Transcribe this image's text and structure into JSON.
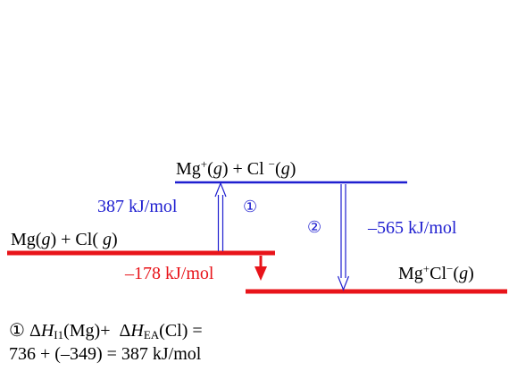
{
  "levels": {
    "ions_gas": {
      "species": [
        {
          "ion": "Mg",
          "charge": "+",
          "phase": "g"
        },
        {
          "ion": "Cl",
          "charge": "−",
          "phase": "g"
        }
      ],
      "joiner": " + ",
      "color": "#1f1fd0"
    },
    "atoms_gas": {
      "species": [
        {
          "ion": "Mg",
          "charge": "",
          "phase": "g"
        },
        {
          "ion": "Cl",
          "charge": "",
          "phase": "g"
        }
      ],
      "joiner": " + ",
      "color": "#e8141a"
    },
    "ion_pair": {
      "label_main": "Mg",
      "label_sup1": "+",
      "label_mid": "Cl",
      "label_sup2": "−",
      "phase": "g",
      "color": "#e8141a"
    }
  },
  "arrows": {
    "step1": {
      "marker": "①",
      "value": "387 kJ/mol",
      "color": "#1f1fd0",
      "direction": "up"
    },
    "step2": {
      "marker": "②",
      "value": "–565 kJ/mol",
      "color": "#1f1fd0",
      "direction": "down"
    },
    "net": {
      "value": "–178 kJ/mol",
      "color": "#e8141a",
      "direction": "down"
    }
  },
  "note": {
    "marker": "①",
    "delta": "Δ",
    "h1_sub": "I1",
    "h1_arg": "(Mg)+",
    "h2_sub": "EA",
    "h2_arg": "(Cl) =",
    "line2": "736 + (–349) = 387 kJ/mol"
  }
}
